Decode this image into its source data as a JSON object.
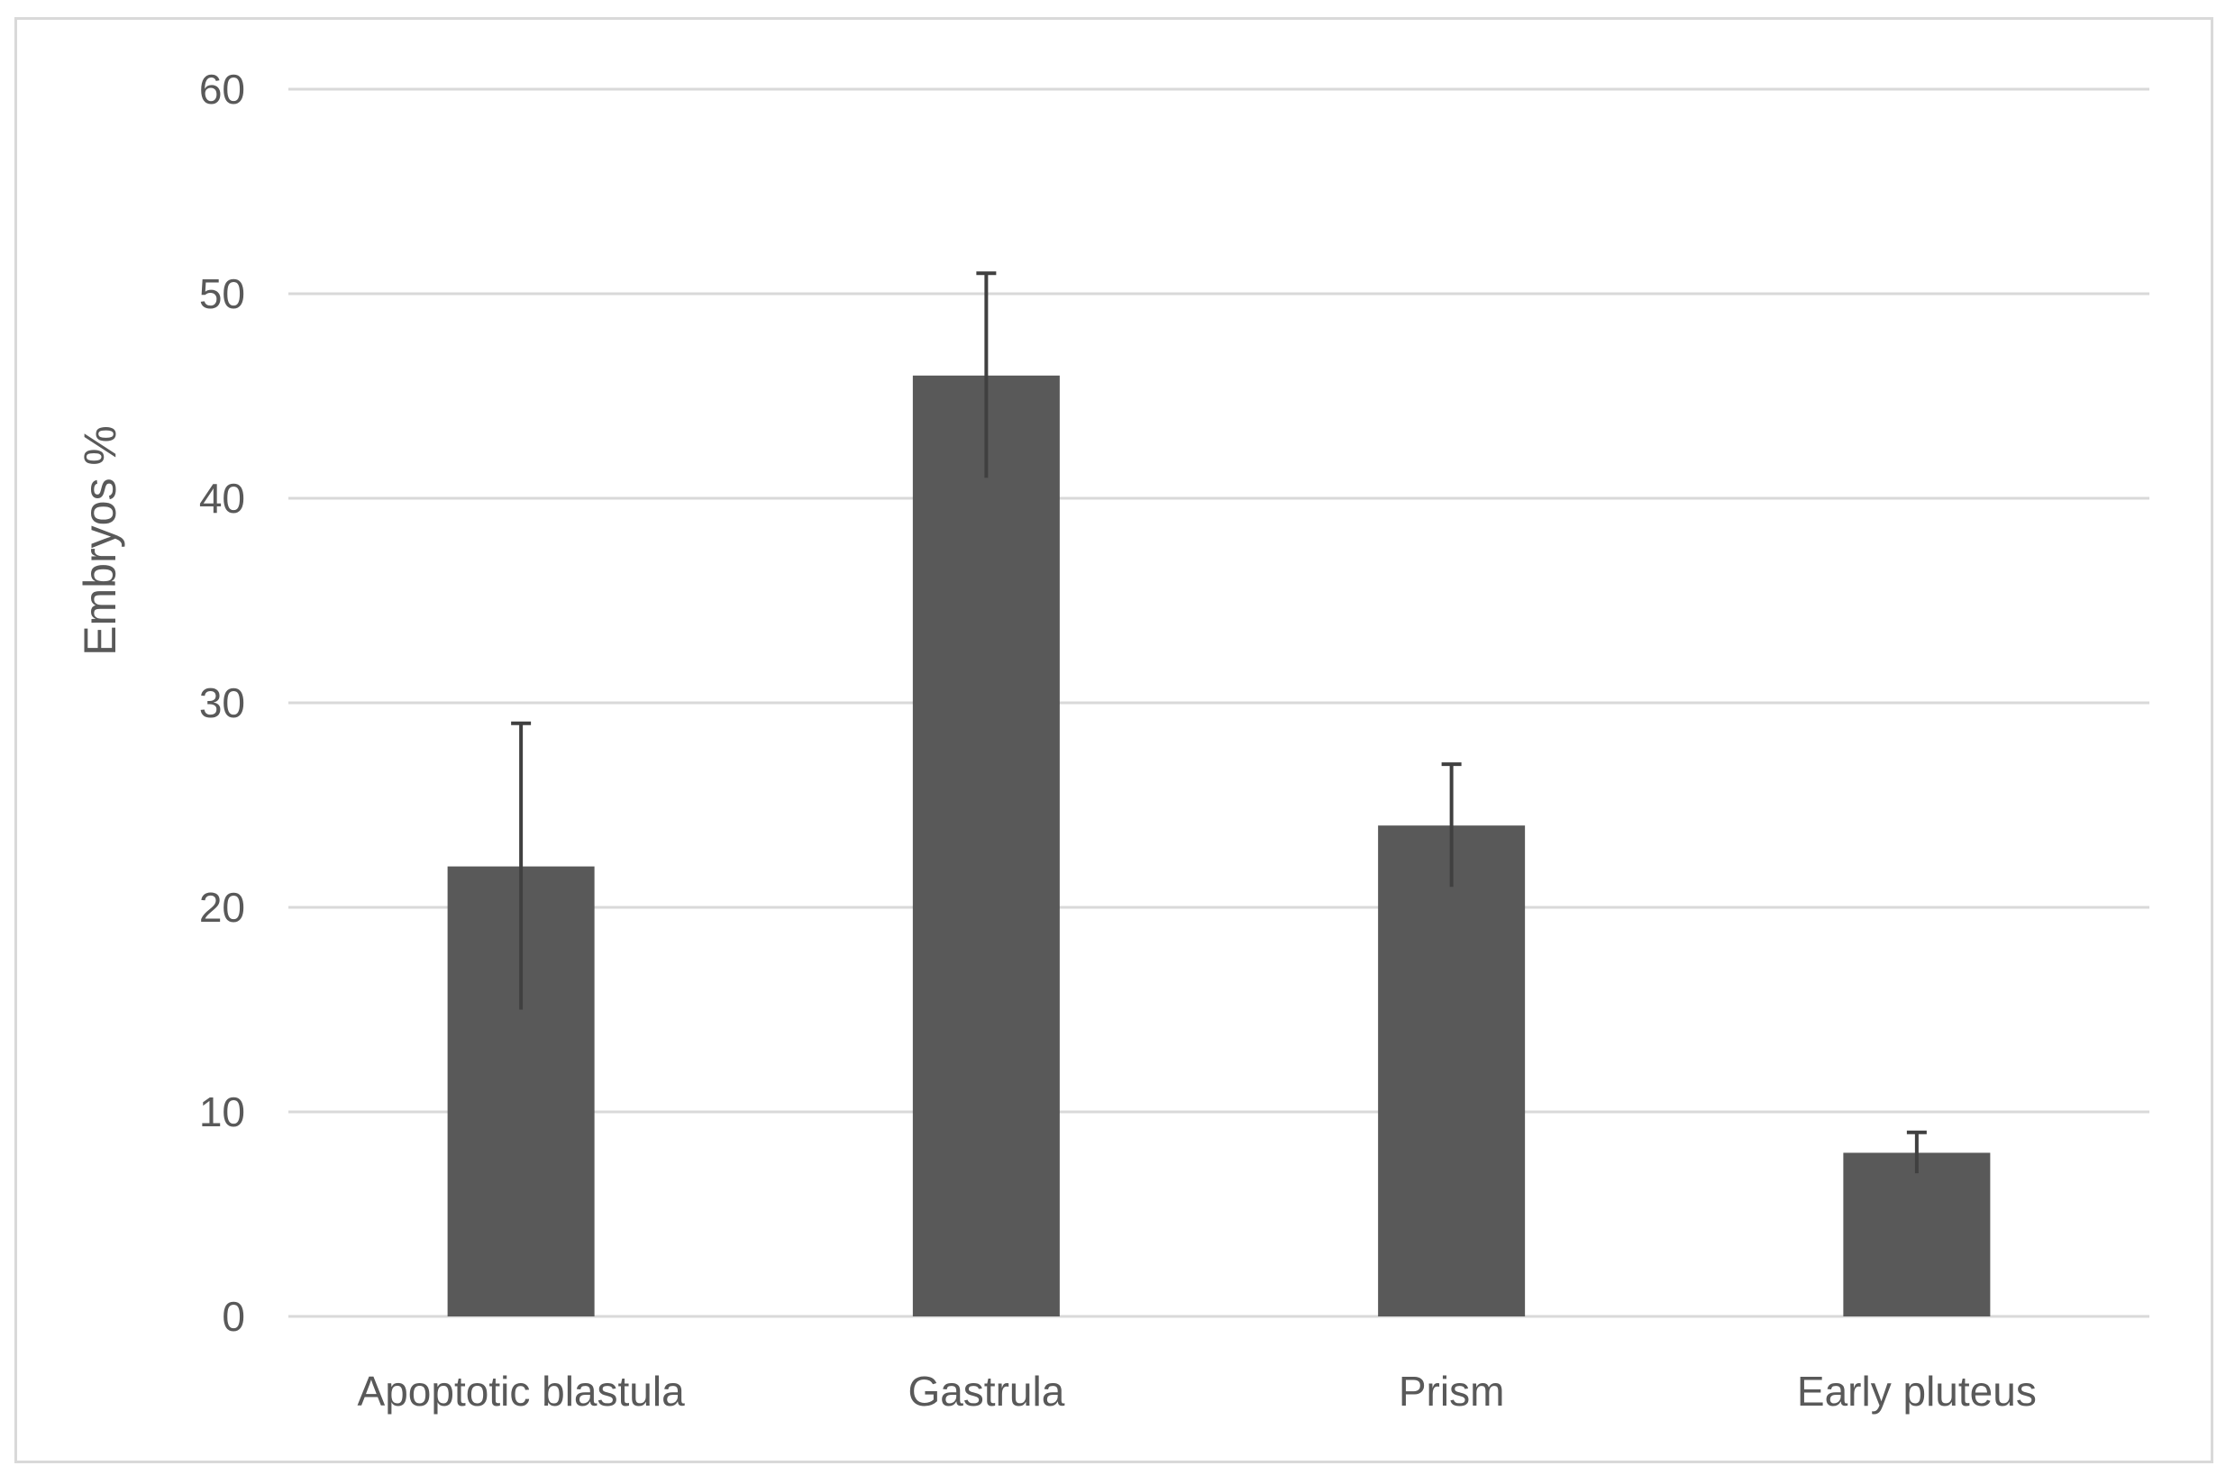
{
  "chart_data": {
    "type": "bar",
    "title": "",
    "xlabel": "",
    "ylabel": "Embryos %",
    "ylim": [
      0,
      60
    ],
    "yticks": [
      0,
      10,
      20,
      30,
      40,
      50,
      60
    ],
    "grid": "horizontal",
    "categories": [
      "Apoptotic blastula",
      "Gastrula",
      "Prism",
      "Early pluteus"
    ],
    "values": [
      22,
      46,
      24,
      8
    ],
    "error_bars": [
      7,
      5,
      3,
      1
    ],
    "colors": {
      "bar": "#595959",
      "error_bar": "#404040",
      "grid": "#d9d9d9",
      "text": "#595959"
    }
  }
}
